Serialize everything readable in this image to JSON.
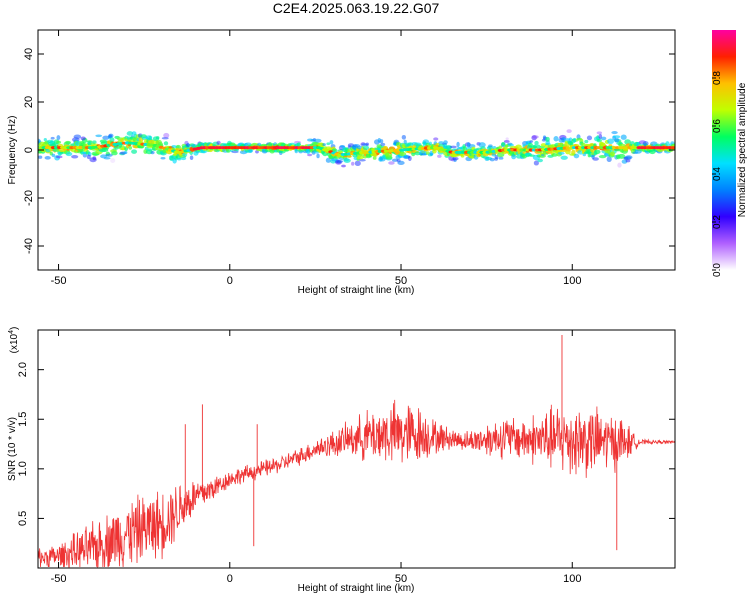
{
  "title": "C2E4.2025.063.19.22.G07",
  "chart_data": [
    {
      "type": "heatmap",
      "xlabel": "Height of straight line (km)",
      "ylabel": "Frequency (Hz)",
      "xlim": [
        -56,
        130
      ],
      "ylim": [
        -50,
        50
      ],
      "xticks": [
        -50,
        0,
        50,
        100
      ],
      "yticks": [
        -40,
        -20,
        0,
        20,
        40
      ],
      "colorbar": {
        "label": "Normalized spectral amplitude",
        "range": [
          0.0,
          1.0
        ],
        "ticks": [
          0.0,
          0.2,
          0.4,
          0.6,
          0.8
        ],
        "colormap": [
          "#ffffff",
          "#b060ff",
          "#3000ff",
          "#0080ff",
          "#00e0ff",
          "#00ff60",
          "#c0ff00",
          "#ffc000",
          "#ff2000",
          "#ff00a0"
        ]
      },
      "signal": {
        "center_line_hz": [
          [
            -56,
            1
          ],
          [
            -40,
            1
          ],
          [
            -30,
            3
          ],
          [
            -22,
            2
          ],
          [
            -15,
            -1
          ],
          [
            -8,
            1
          ],
          [
            0,
            1
          ],
          [
            20,
            1
          ],
          [
            26,
            1
          ],
          [
            32,
            -2
          ],
          [
            40,
            -1
          ],
          [
            50,
            0
          ],
          [
            60,
            1
          ],
          [
            65,
            -1
          ],
          [
            75,
            -1
          ],
          [
            80,
            0
          ],
          [
            90,
            0
          ],
          [
            100,
            1
          ],
          [
            110,
            1
          ],
          [
            118,
            1
          ],
          [
            130,
            1
          ]
        ],
        "spread_hz": [
          [
            -56,
            4
          ],
          [
            -30,
            6
          ],
          [
            -15,
            5
          ],
          [
            -10,
            2
          ],
          [
            20,
            2
          ],
          [
            28,
            4
          ],
          [
            50,
            5
          ],
          [
            62,
            3
          ],
          [
            80,
            4
          ],
          [
            95,
            6
          ],
          [
            115,
            6
          ],
          [
            120,
            2
          ],
          [
            130,
            2
          ]
        ]
      }
    },
    {
      "type": "line",
      "xlabel": "Height of straight line (km)",
      "ylabel": "SNR (10 * v/v)",
      "ymultiplier": "(x10",
      "ymultiplier_exp": "4",
      "ymultiplier_close": ")",
      "xlim": [
        -56,
        130
      ],
      "ylim": [
        0.0,
        2.4
      ],
      "xticks": [
        -50,
        0,
        50,
        100
      ],
      "yticks": [
        0.5,
        1.0,
        1.5,
        2.0
      ],
      "color": "#ee3333",
      "series": [
        {
          "envelope_x": [
            -56,
            -50,
            -40,
            -30,
            -20,
            -15,
            -10,
            -5,
            0,
            5,
            10,
            15,
            20,
            25,
            30,
            35,
            40,
            45,
            50,
            55,
            60,
            65,
            70,
            75,
            80,
            85,
            90,
            95,
            100,
            105,
            110,
            115,
            118,
            120,
            125,
            130
          ],
          "mean": [
            0.1,
            0.12,
            0.2,
            0.35,
            0.45,
            0.6,
            0.72,
            0.8,
            0.9,
            0.95,
            1.0,
            1.05,
            1.12,
            1.2,
            1.25,
            1.3,
            1.33,
            1.35,
            1.35,
            1.35,
            1.32,
            1.3,
            1.28,
            1.3,
            1.32,
            1.3,
            1.3,
            1.3,
            1.3,
            1.28,
            1.28,
            1.27,
            1.27,
            1.27,
            1.27,
            1.27
          ],
          "amplitude": [
            0.12,
            0.15,
            0.3,
            0.4,
            0.4,
            0.35,
            0.22,
            0.15,
            0.1,
            0.1,
            0.1,
            0.1,
            0.1,
            0.12,
            0.16,
            0.2,
            0.3,
            0.35,
            0.4,
            0.35,
            0.2,
            0.12,
            0.12,
            0.2,
            0.25,
            0.25,
            0.32,
            0.4,
            0.45,
            0.42,
            0.35,
            0.3,
            0.1,
            0.03,
            0.02,
            0.02
          ],
          "peaks": [
            [
              -8,
              1.65
            ],
            [
              -13,
              1.45
            ],
            [
              8,
              1.45
            ],
            [
              97,
              2.35
            ],
            [
              113,
              0.18
            ],
            [
              7,
              0.22
            ]
          ]
        }
      ]
    }
  ]
}
